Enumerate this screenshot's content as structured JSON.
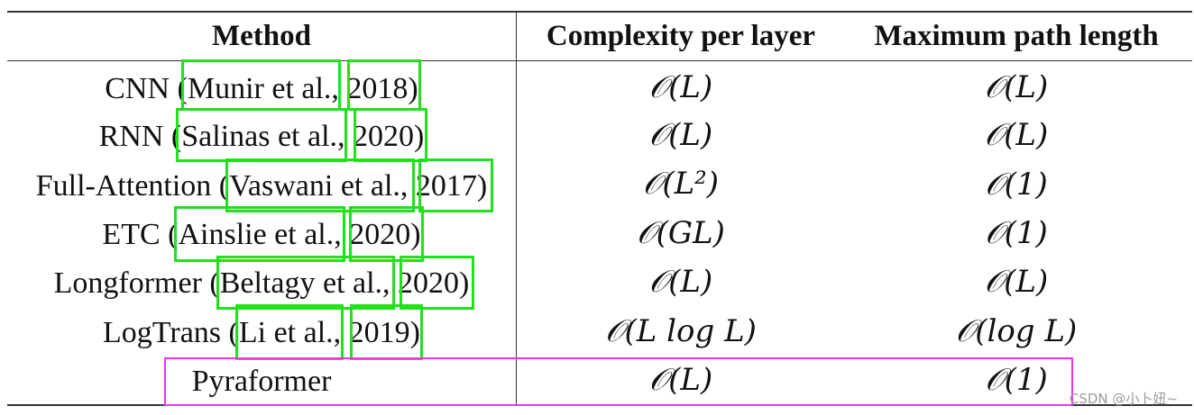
{
  "table": {
    "headers": {
      "method": "Method",
      "complexity": "Complexity per layer",
      "path": "Maximum path length"
    },
    "rows": [
      {
        "method": "CNN (Munir et al., 2018)",
        "complexity": "𝒪(L)",
        "path": "𝒪(L)"
      },
      {
        "method": "RNN (Salinas et al., 2020)",
        "complexity": "𝒪(L)",
        "path": "𝒪(L)"
      },
      {
        "method": "Full-Attention (Vaswani et al., 2017)",
        "complexity": "𝒪(L²)",
        "path": "𝒪(1)"
      },
      {
        "method": "ETC (Ainslie et al., 2020)",
        "complexity": "𝒪(GL)",
        "path": "𝒪(1)"
      },
      {
        "method": "Longformer (Beltagy et al., 2020)",
        "complexity": "𝒪(L)",
        "path": "𝒪(L)"
      },
      {
        "method": "LogTrans (Li et al., 2019)",
        "complexity": "𝒪(L log L)",
        "path": "𝒪(log L)"
      },
      {
        "method": "Pyraformer",
        "complexity": "𝒪(L)",
        "path": "𝒪(1)"
      }
    ]
  },
  "annotations": {
    "green_color": "#22e01c",
    "magenta_color": "#ee33ee"
  },
  "watermark": "CSDN @小卜妞~"
}
